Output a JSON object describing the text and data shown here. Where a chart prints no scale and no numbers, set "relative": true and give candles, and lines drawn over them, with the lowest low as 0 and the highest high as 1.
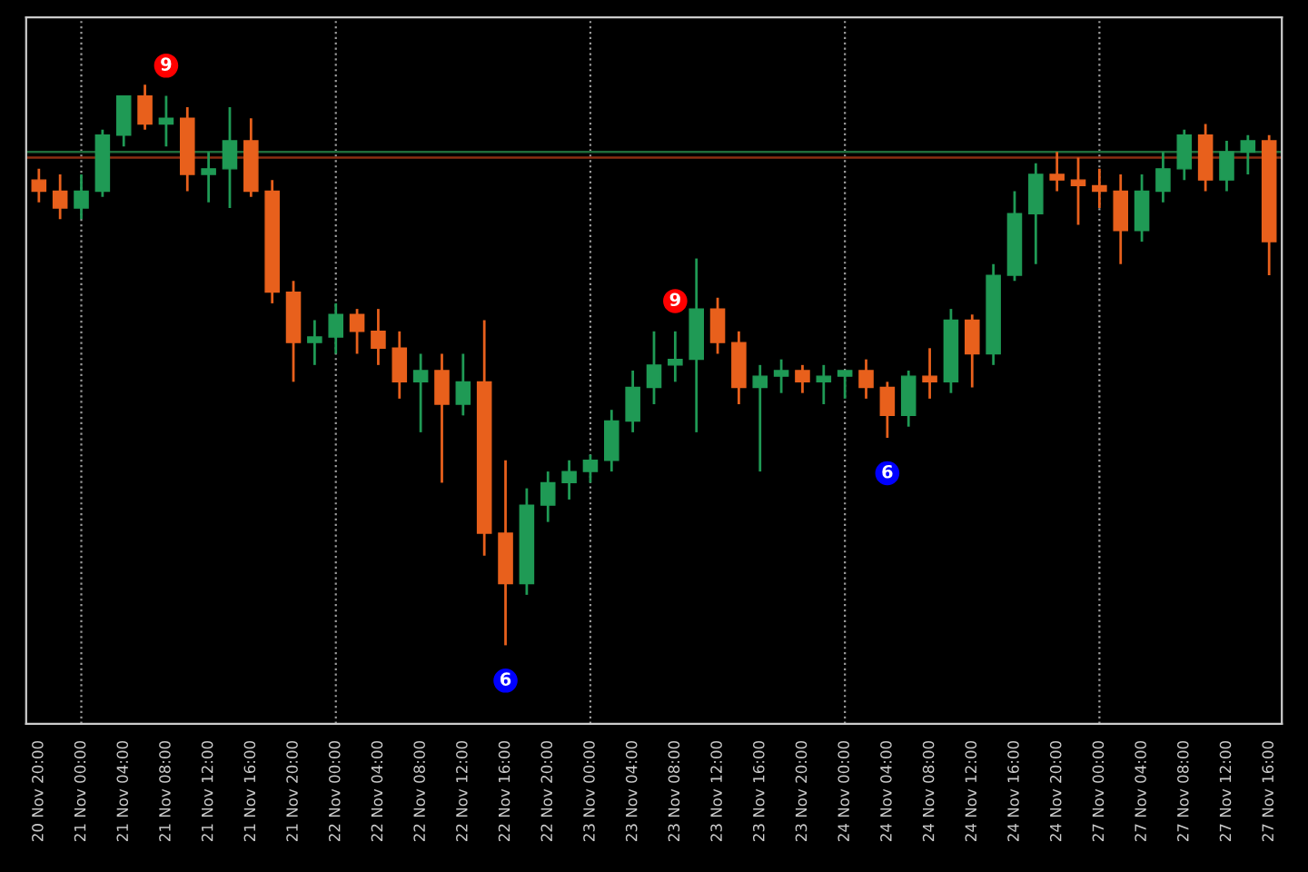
{
  "chart_data": {
    "type": "candlestick",
    "relative": true,
    "tick_labels": "x",
    "grid": false,
    "categories": [
      "20 Nov 20:00",
      null,
      "21 Nov 00:00",
      null,
      "21 Nov 04:00",
      null,
      "21 Nov 08:00",
      null,
      "21 Nov 12:00",
      null,
      "21 Nov 16:00",
      null,
      "21 Nov 20:00",
      null,
      "22 Nov 00:00",
      null,
      "22 Nov 04:00",
      null,
      "22 Nov 08:00",
      null,
      "22 Nov 12:00",
      null,
      "22 Nov 16:00",
      null,
      "22 Nov 20:00",
      null,
      "23 Nov 00:00",
      null,
      "23 Nov 04:00",
      null,
      "23 Nov 08:00",
      null,
      "23 Nov 12:00",
      null,
      "23 Nov 16:00",
      null,
      "23 Nov 20:00",
      null,
      "24 Nov 00:00",
      null,
      "24 Nov 04:00",
      null,
      "24 Nov 08:00",
      null,
      "24 Nov 12:00",
      null,
      "24 Nov 16:00",
      null,
      "24 Nov 20:00",
      null,
      "27 Nov 00:00",
      null,
      "27 Nov 04:00",
      null,
      "27 Nov 08:00",
      null,
      "27 Nov 12:00",
      null,
      "27 Nov 16:00"
    ],
    "ohlc": [
      [
        0.83,
        0.85,
        0.79,
        0.81
      ],
      [
        0.81,
        0.84,
        0.76,
        0.78
      ],
      [
        0.78,
        0.84,
        0.76,
        0.81
      ],
      [
        0.81,
        0.92,
        0.8,
        0.91
      ],
      [
        0.91,
        0.98,
        0.89,
        0.98
      ],
      [
        0.98,
        1.0,
        0.92,
        0.93
      ],
      [
        0.93,
        0.98,
        0.89,
        0.94
      ],
      [
        0.94,
        0.96,
        0.81,
        0.84
      ],
      [
        0.84,
        0.88,
        0.79,
        0.85
      ],
      [
        0.85,
        0.96,
        0.78,
        0.9
      ],
      [
        0.9,
        0.94,
        0.8,
        0.81
      ],
      [
        0.81,
        0.83,
        0.61,
        0.63
      ],
      [
        0.63,
        0.65,
        0.47,
        0.54
      ],
      [
        0.54,
        0.58,
        0.5,
        0.55
      ],
      [
        0.55,
        0.61,
        0.52,
        0.59
      ],
      [
        0.59,
        0.6,
        0.52,
        0.56
      ],
      [
        0.56,
        0.6,
        0.5,
        0.53
      ],
      [
        0.53,
        0.56,
        0.44,
        0.47
      ],
      [
        0.47,
        0.52,
        0.38,
        0.49
      ],
      [
        0.49,
        0.52,
        0.29,
        0.43
      ],
      [
        0.43,
        0.52,
        0.41,
        0.47
      ],
      [
        0.47,
        0.58,
        0.16,
        0.2
      ],
      [
        0.2,
        0.33,
        0.0,
        0.11
      ],
      [
        0.11,
        0.28,
        0.09,
        0.25
      ],
      [
        0.25,
        0.31,
        0.22,
        0.29
      ],
      [
        0.29,
        0.33,
        0.26,
        0.31
      ],
      [
        0.31,
        0.34,
        0.29,
        0.33
      ],
      [
        0.33,
        0.42,
        0.31,
        0.4
      ],
      [
        0.4,
        0.49,
        0.38,
        0.46
      ],
      [
        0.46,
        0.56,
        0.43,
        0.5
      ],
      [
        0.5,
        0.56,
        0.47,
        0.51
      ],
      [
        0.51,
        0.69,
        0.38,
        0.6
      ],
      [
        0.6,
        0.62,
        0.52,
        0.54
      ],
      [
        0.54,
        0.56,
        0.43,
        0.46
      ],
      [
        0.46,
        0.5,
        0.31,
        0.48
      ],
      [
        0.48,
        0.51,
        0.45,
        0.49
      ],
      [
        0.49,
        0.5,
        0.45,
        0.47
      ],
      [
        0.47,
        0.5,
        0.43,
        0.48
      ],
      [
        0.48,
        0.49,
        0.44,
        0.49
      ],
      [
        0.49,
        0.51,
        0.44,
        0.46
      ],
      [
        0.46,
        0.47,
        0.37,
        0.41
      ],
      [
        0.41,
        0.49,
        0.39,
        0.48
      ],
      [
        0.48,
        0.53,
        0.44,
        0.47
      ],
      [
        0.47,
        0.6,
        0.45,
        0.58
      ],
      [
        0.58,
        0.59,
        0.46,
        0.52
      ],
      [
        0.52,
        0.68,
        0.5,
        0.66
      ],
      [
        0.66,
        0.81,
        0.65,
        0.77
      ],
      [
        0.77,
        0.86,
        0.68,
        0.84
      ],
      [
        0.84,
        0.88,
        0.81,
        0.83
      ],
      [
        0.83,
        0.87,
        0.75,
        0.82
      ],
      [
        0.82,
        0.85,
        0.78,
        0.81
      ],
      [
        0.81,
        0.84,
        0.68,
        0.74
      ],
      [
        0.74,
        0.84,
        0.72,
        0.81
      ],
      [
        0.81,
        0.88,
        0.79,
        0.85
      ],
      [
        0.85,
        0.92,
        0.83,
        0.91
      ],
      [
        0.91,
        0.93,
        0.81,
        0.83
      ],
      [
        0.83,
        0.9,
        0.81,
        0.88
      ],
      [
        0.88,
        0.91,
        0.84,
        0.9
      ],
      [
        0.9,
        0.91,
        0.66,
        0.72
      ]
    ],
    "ref_lines": [
      {
        "axis": "y",
        "value": 0.88,
        "color": "#1f6b3a",
        "line_style": "solid"
      },
      {
        "axis": "y",
        "value": 0.87,
        "color": "#8a2e12",
        "line_style": "solid"
      },
      {
        "axis": "x",
        "value": "21 Nov 00:00",
        "color": "#9a9a9a",
        "line_style": "dotted"
      },
      {
        "axis": "x",
        "value": "22 Nov 00:00",
        "color": "#9a9a9a",
        "line_style": "dotted"
      },
      {
        "axis": "x",
        "value": "23 Nov 00:00",
        "color": "#9a9a9a",
        "line_style": "dotted"
      },
      {
        "axis": "x",
        "value": "24 Nov 00:00",
        "color": "#9a9a9a",
        "line_style": "dotted"
      },
      {
        "axis": "x",
        "value": "27 Nov 00:00",
        "color": "#9a9a9a",
        "line_style": "dotted"
      }
    ],
    "annotations": [
      {
        "text": "9",
        "x": "21 Nov 08:00",
        "y": 0.98
      },
      {
        "text": "9",
        "x": "23 Nov 08:00",
        "y": 0.56
      },
      {
        "text": "6",
        "x": "22 Nov 16:00",
        "y": 0.0
      },
      {
        "text": "6",
        "x": "24 Nov 04:00",
        "y": 0.37
      }
    ]
  }
}
